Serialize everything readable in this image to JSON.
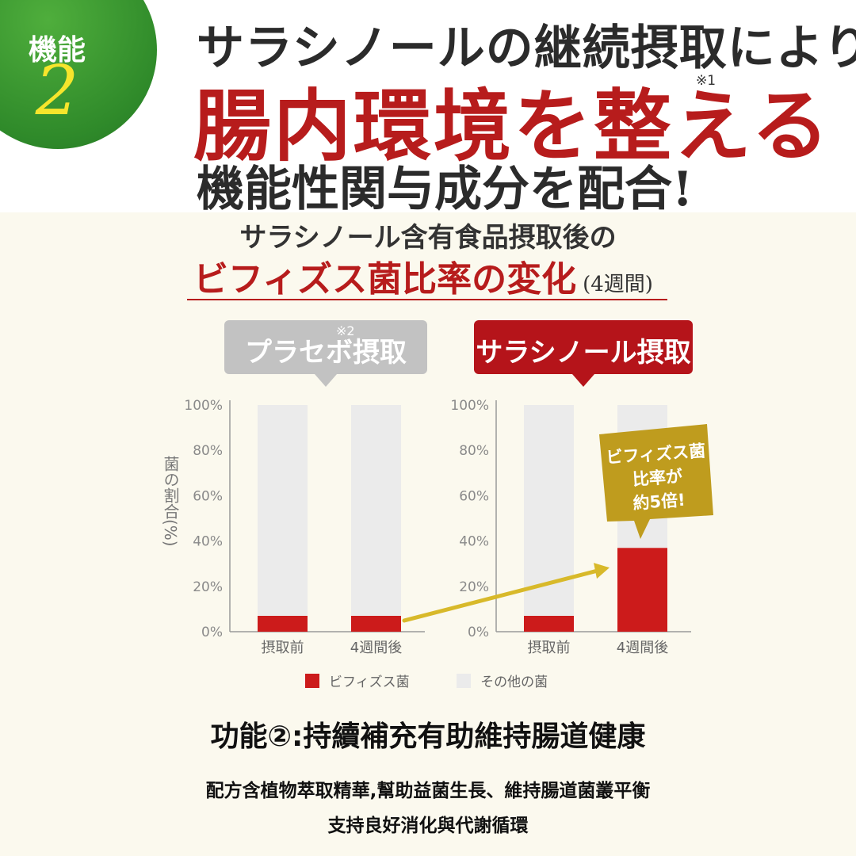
{
  "badge": {
    "label": "機能",
    "number": "2"
  },
  "headline": {
    "line1": "サラシノールの継続摂取により",
    "line2": "腸内環境を整える",
    "line2_note": "※1",
    "line3": "機能性関与成分を配合!"
  },
  "chart_header": {
    "line1": "サラシノール含有食品摂取後の",
    "line2": "ビフィズス菌比率の変化",
    "period": "(4週間)"
  },
  "callouts": {
    "placebo": "プラセボ摂取",
    "placebo_note": "※2",
    "salacinol": "サラシノール摂取"
  },
  "highlight_bubble": {
    "lines": [
      "ビフィズス菌",
      "比率が",
      "約5倍!"
    ]
  },
  "chart_data": {
    "type": "bar",
    "stacked": true,
    "ylabel": "菌の割合(%)",
    "ylim": [
      0,
      100
    ],
    "yticks": [
      "0%",
      "20%",
      "40%",
      "60%",
      "80%",
      "100%"
    ],
    "legend_placement": "bottom",
    "groups": [
      {
        "name": "プラセボ摂取",
        "categories": [
          "摂取前",
          "4週間後"
        ],
        "series": [
          {
            "name": "ビフィズス菌",
            "values": [
              7,
              7
            ]
          },
          {
            "name": "その他の菌",
            "values": [
              93,
              93
            ]
          }
        ]
      },
      {
        "name": "サラシノール摂取",
        "categories": [
          "摂取前",
          "4週間後"
        ],
        "series": [
          {
            "name": "ビフィズス菌",
            "values": [
              7,
              37
            ]
          },
          {
            "name": "その他の菌",
            "values": [
              93,
              63
            ]
          }
        ]
      }
    ]
  },
  "legend": [
    {
      "label": "ビフィズス菌",
      "color": "#cc1b1b"
    },
    {
      "label": "その他の菌",
      "color": "#ebebeb"
    }
  ],
  "colors": {
    "red": "#cc1b1b",
    "other": "#ebebeb",
    "arrow": "#d8b92a",
    "bubble": "#bf9c1e",
    "brand_green": "#2f8a2a"
  },
  "footer": {
    "title": "功能②:持續補充有助維持腸道健康",
    "line1": "配方含植物萃取精華,幫助益菌生長、維持腸道菌叢平衡",
    "line2": "支持良好消化與代謝循環"
  }
}
